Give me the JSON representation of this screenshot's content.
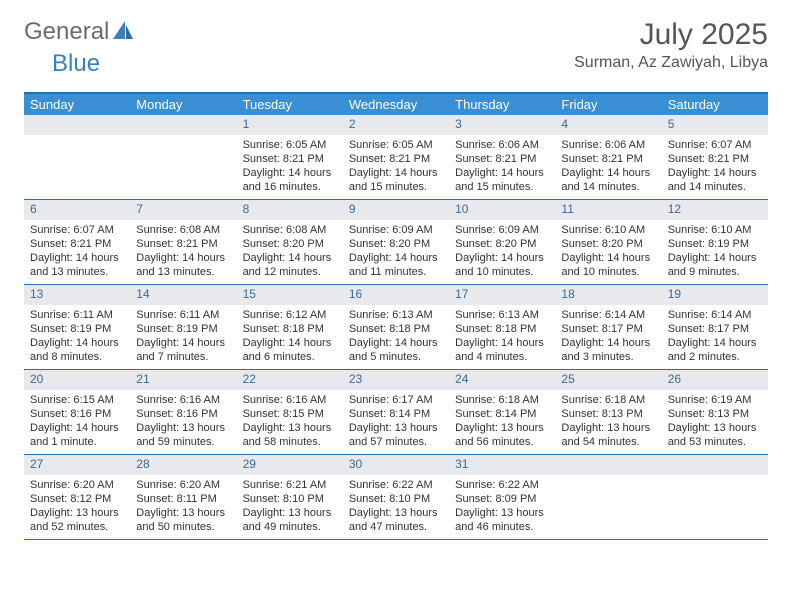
{
  "brand": {
    "part1": "General",
    "part2": "Blue"
  },
  "title": "July 2025",
  "location": "Surman, Az Zawiyah, Libya",
  "colors": {
    "header_bg": "#3a8fd4",
    "rule": "#2d6ea8",
    "daynum_bg": "#e7e9ec",
    "daynum_color": "#3a6a9a",
    "brand_gray": "#6b6b6b",
    "brand_blue": "#3a7fb8"
  },
  "dayNames": [
    "Sunday",
    "Monday",
    "Tuesday",
    "Wednesday",
    "Thursday",
    "Friday",
    "Saturday"
  ],
  "weeks": [
    [
      {
        "n": "",
        "empty": true
      },
      {
        "n": "",
        "empty": true
      },
      {
        "n": "1",
        "sr": "Sunrise: 6:05 AM",
        "ss": "Sunset: 8:21 PM",
        "dl": "Daylight: 14 hours and 16 minutes."
      },
      {
        "n": "2",
        "sr": "Sunrise: 6:05 AM",
        "ss": "Sunset: 8:21 PM",
        "dl": "Daylight: 14 hours and 15 minutes."
      },
      {
        "n": "3",
        "sr": "Sunrise: 6:06 AM",
        "ss": "Sunset: 8:21 PM",
        "dl": "Daylight: 14 hours and 15 minutes."
      },
      {
        "n": "4",
        "sr": "Sunrise: 6:06 AM",
        "ss": "Sunset: 8:21 PM",
        "dl": "Daylight: 14 hours and 14 minutes."
      },
      {
        "n": "5",
        "sr": "Sunrise: 6:07 AM",
        "ss": "Sunset: 8:21 PM",
        "dl": "Daylight: 14 hours and 14 minutes."
      }
    ],
    [
      {
        "n": "6",
        "sr": "Sunrise: 6:07 AM",
        "ss": "Sunset: 8:21 PM",
        "dl": "Daylight: 14 hours and 13 minutes."
      },
      {
        "n": "7",
        "sr": "Sunrise: 6:08 AM",
        "ss": "Sunset: 8:21 PM",
        "dl": "Daylight: 14 hours and 13 minutes."
      },
      {
        "n": "8",
        "sr": "Sunrise: 6:08 AM",
        "ss": "Sunset: 8:20 PM",
        "dl": "Daylight: 14 hours and 12 minutes."
      },
      {
        "n": "9",
        "sr": "Sunrise: 6:09 AM",
        "ss": "Sunset: 8:20 PM",
        "dl": "Daylight: 14 hours and 11 minutes."
      },
      {
        "n": "10",
        "sr": "Sunrise: 6:09 AM",
        "ss": "Sunset: 8:20 PM",
        "dl": "Daylight: 14 hours and 10 minutes."
      },
      {
        "n": "11",
        "sr": "Sunrise: 6:10 AM",
        "ss": "Sunset: 8:20 PM",
        "dl": "Daylight: 14 hours and 10 minutes."
      },
      {
        "n": "12",
        "sr": "Sunrise: 6:10 AM",
        "ss": "Sunset: 8:19 PM",
        "dl": "Daylight: 14 hours and 9 minutes."
      }
    ],
    [
      {
        "n": "13",
        "sr": "Sunrise: 6:11 AM",
        "ss": "Sunset: 8:19 PM",
        "dl": "Daylight: 14 hours and 8 minutes."
      },
      {
        "n": "14",
        "sr": "Sunrise: 6:11 AM",
        "ss": "Sunset: 8:19 PM",
        "dl": "Daylight: 14 hours and 7 minutes."
      },
      {
        "n": "15",
        "sr": "Sunrise: 6:12 AM",
        "ss": "Sunset: 8:18 PM",
        "dl": "Daylight: 14 hours and 6 minutes."
      },
      {
        "n": "16",
        "sr": "Sunrise: 6:13 AM",
        "ss": "Sunset: 8:18 PM",
        "dl": "Daylight: 14 hours and 5 minutes."
      },
      {
        "n": "17",
        "sr": "Sunrise: 6:13 AM",
        "ss": "Sunset: 8:18 PM",
        "dl": "Daylight: 14 hours and 4 minutes."
      },
      {
        "n": "18",
        "sr": "Sunrise: 6:14 AM",
        "ss": "Sunset: 8:17 PM",
        "dl": "Daylight: 14 hours and 3 minutes."
      },
      {
        "n": "19",
        "sr": "Sunrise: 6:14 AM",
        "ss": "Sunset: 8:17 PM",
        "dl": "Daylight: 14 hours and 2 minutes."
      }
    ],
    [
      {
        "n": "20",
        "sr": "Sunrise: 6:15 AM",
        "ss": "Sunset: 8:16 PM",
        "dl": "Daylight: 14 hours and 1 minute."
      },
      {
        "n": "21",
        "sr": "Sunrise: 6:16 AM",
        "ss": "Sunset: 8:16 PM",
        "dl": "Daylight: 13 hours and 59 minutes."
      },
      {
        "n": "22",
        "sr": "Sunrise: 6:16 AM",
        "ss": "Sunset: 8:15 PM",
        "dl": "Daylight: 13 hours and 58 minutes."
      },
      {
        "n": "23",
        "sr": "Sunrise: 6:17 AM",
        "ss": "Sunset: 8:14 PM",
        "dl": "Daylight: 13 hours and 57 minutes."
      },
      {
        "n": "24",
        "sr": "Sunrise: 6:18 AM",
        "ss": "Sunset: 8:14 PM",
        "dl": "Daylight: 13 hours and 56 minutes."
      },
      {
        "n": "25",
        "sr": "Sunrise: 6:18 AM",
        "ss": "Sunset: 8:13 PM",
        "dl": "Daylight: 13 hours and 54 minutes."
      },
      {
        "n": "26",
        "sr": "Sunrise: 6:19 AM",
        "ss": "Sunset: 8:13 PM",
        "dl": "Daylight: 13 hours and 53 minutes."
      }
    ],
    [
      {
        "n": "27",
        "sr": "Sunrise: 6:20 AM",
        "ss": "Sunset: 8:12 PM",
        "dl": "Daylight: 13 hours and 52 minutes."
      },
      {
        "n": "28",
        "sr": "Sunrise: 6:20 AM",
        "ss": "Sunset: 8:11 PM",
        "dl": "Daylight: 13 hours and 50 minutes."
      },
      {
        "n": "29",
        "sr": "Sunrise: 6:21 AM",
        "ss": "Sunset: 8:10 PM",
        "dl": "Daylight: 13 hours and 49 minutes."
      },
      {
        "n": "30",
        "sr": "Sunrise: 6:22 AM",
        "ss": "Sunset: 8:10 PM",
        "dl": "Daylight: 13 hours and 47 minutes."
      },
      {
        "n": "31",
        "sr": "Sunrise: 6:22 AM",
        "ss": "Sunset: 8:09 PM",
        "dl": "Daylight: 13 hours and 46 minutes."
      },
      {
        "n": "",
        "empty": true
      },
      {
        "n": "",
        "empty": true
      }
    ]
  ]
}
